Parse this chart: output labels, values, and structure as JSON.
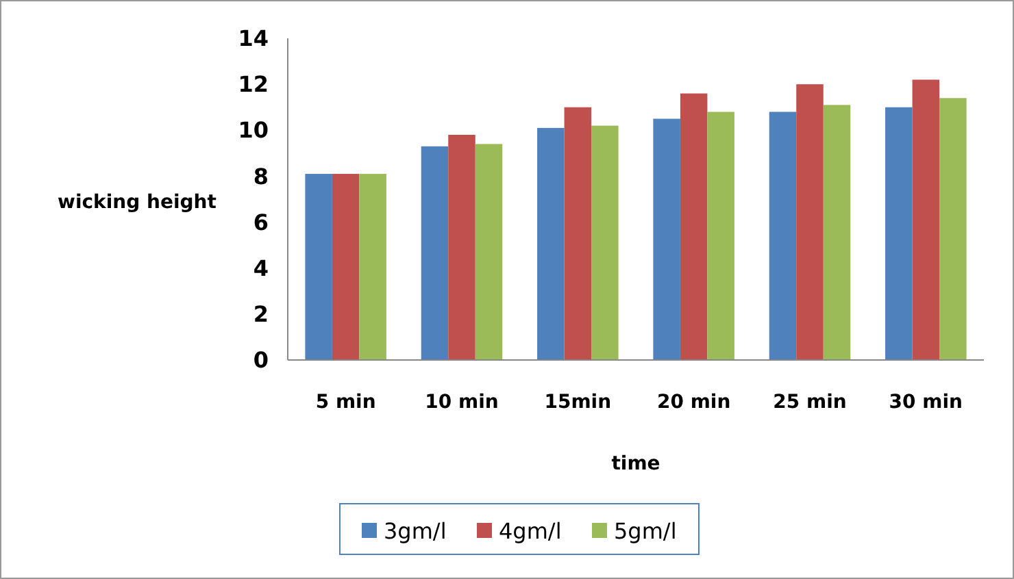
{
  "chart_data": {
    "type": "bar",
    "xlabel": "time",
    "ylabel": "wicking height",
    "categories": [
      "5 min",
      "10 min",
      "15min",
      "20 min",
      "25 min",
      "30 min"
    ],
    "series": [
      {
        "name": "3gm/l",
        "color": "#4f81bd",
        "values": [
          8.1,
          9.3,
          10.1,
          10.5,
          10.8,
          11.0
        ]
      },
      {
        "name": "4gm/l",
        "color": "#c0504d",
        "values": [
          8.1,
          9.8,
          11.0,
          11.6,
          12.0,
          12.2
        ]
      },
      {
        "name": "5gm/l",
        "color": "#9bbb59",
        "values": [
          8.1,
          9.4,
          10.2,
          10.8,
          11.1,
          11.4
        ]
      }
    ],
    "ylim": [
      0,
      14
    ],
    "yticks": [
      0,
      2,
      4,
      6,
      8,
      10,
      12,
      14
    ],
    "grid": false,
    "legend": "bottom"
  }
}
